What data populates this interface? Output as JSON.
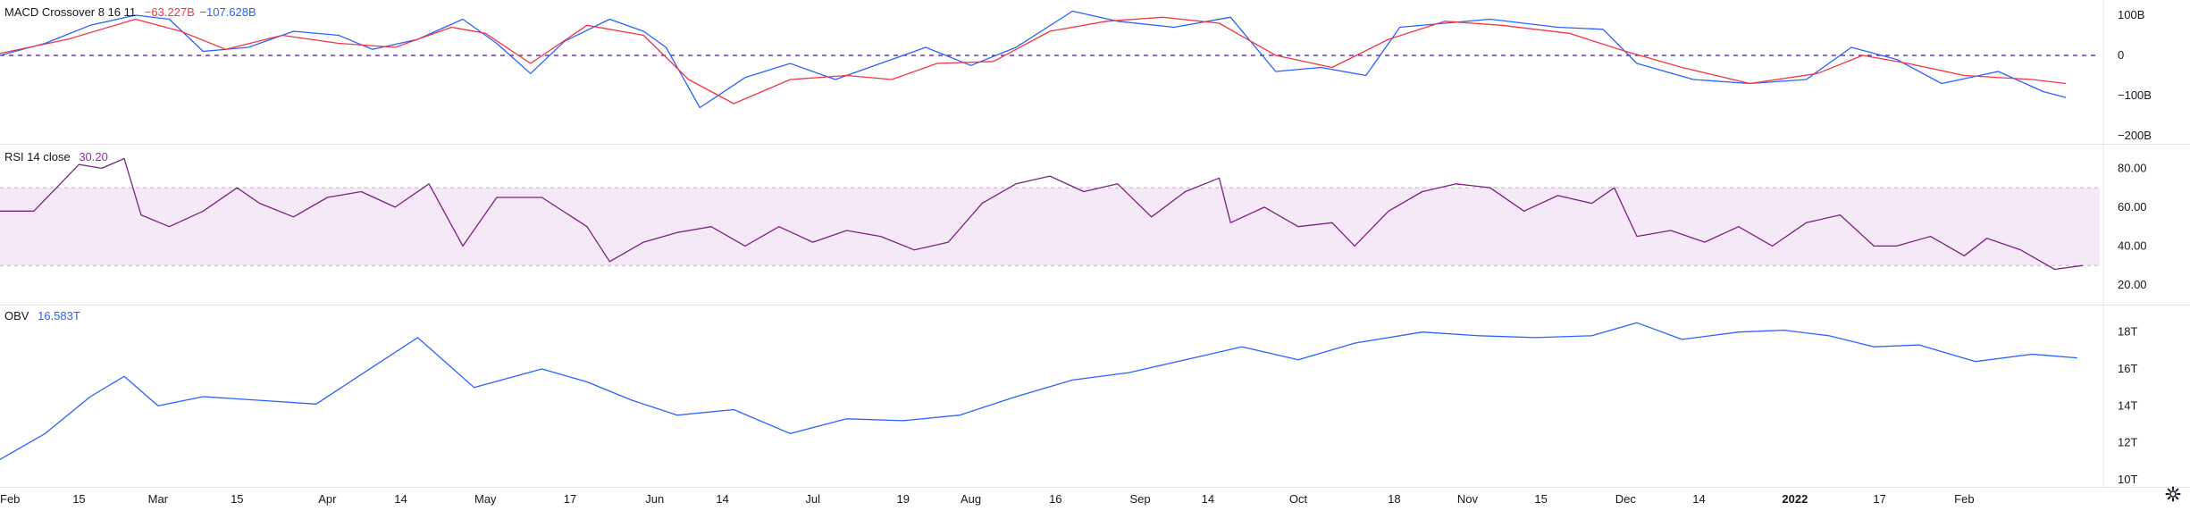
{
  "indicators": {
    "macd": {
      "title": "MACD Crossover 8 16 11",
      "signal_value": "−63.227B",
      "macd_value": "−107.628B",
      "signal_color": "#f23645",
      "macd_color": "#2962ff"
    },
    "rsi": {
      "title": "RSI 14 close",
      "value": "30.20",
      "color": "#7e1f86",
      "band_color": "#9c27b0"
    },
    "obv": {
      "title": "OBV",
      "value": "16.583T",
      "color": "#2962ff"
    }
  },
  "chart_data": [
    {
      "type": "line",
      "title": "MACD Crossover 8 16 11",
      "ylim": [
        -200,
        120
      ],
      "y_ticks": [
        "100B",
        "0",
        "−100B",
        "−200B"
      ],
      "y_tick_values": [
        100,
        0,
        -100,
        -200
      ],
      "zero_line": true,
      "x_range": [
        0,
        372
      ],
      "series": [
        {
          "color": "#2962ff",
          "points": [
            [
              0,
              0
            ],
            [
              8,
              30
            ],
            [
              16,
              75
            ],
            [
              24,
              100
            ],
            [
              30,
              90
            ],
            [
              36,
              10
            ],
            [
              44,
              20
            ],
            [
              52,
              60
            ],
            [
              60,
              50
            ],
            [
              66,
              15
            ],
            [
              74,
              40
            ],
            [
              82,
              90
            ],
            [
              88,
              30
            ],
            [
              94,
              -45
            ],
            [
              100,
              35
            ],
            [
              108,
              90
            ],
            [
              114,
              60
            ],
            [
              118,
              20
            ],
            [
              124,
              -130
            ],
            [
              132,
              -55
            ],
            [
              140,
              -20
            ],
            [
              148,
              -60
            ],
            [
              156,
              -20
            ],
            [
              164,
              20
            ],
            [
              172,
              -25
            ],
            [
              180,
              20
            ],
            [
              190,
              110
            ],
            [
              198,
              85
            ],
            [
              208,
              70
            ],
            [
              218,
              95
            ],
            [
              226,
              -40
            ],
            [
              234,
              -30
            ],
            [
              242,
              -50
            ],
            [
              248,
              70
            ],
            [
              256,
              80
            ],
            [
              264,
              90
            ],
            [
              276,
              70
            ],
            [
              284,
              65
            ],
            [
              290,
              -20
            ],
            [
              300,
              -60
            ],
            [
              310,
              -70
            ],
            [
              320,
              -60
            ],
            [
              328,
              20
            ],
            [
              336,
              -10
            ],
            [
              344,
              -70
            ],
            [
              354,
              -40
            ],
            [
              362,
              -90
            ],
            [
              366,
              -105
            ]
          ]
        },
        {
          "color": "#f23645",
          "points": [
            [
              0,
              5
            ],
            [
              12,
              40
            ],
            [
              24,
              90
            ],
            [
              32,
              60
            ],
            [
              40,
              15
            ],
            [
              50,
              50
            ],
            [
              60,
              30
            ],
            [
              70,
              20
            ],
            [
              80,
              70
            ],
            [
              86,
              55
            ],
            [
              94,
              -20
            ],
            [
              104,
              75
            ],
            [
              114,
              50
            ],
            [
              122,
              -60
            ],
            [
              130,
              -120
            ],
            [
              140,
              -60
            ],
            [
              150,
              -50
            ],
            [
              158,
              -60
            ],
            [
              166,
              -20
            ],
            [
              176,
              -15
            ],
            [
              186,
              60
            ],
            [
              196,
              85
            ],
            [
              206,
              95
            ],
            [
              216,
              80
            ],
            [
              226,
              0
            ],
            [
              236,
              -30
            ],
            [
              246,
              40
            ],
            [
              256,
              85
            ],
            [
              266,
              75
            ],
            [
              278,
              55
            ],
            [
              288,
              10
            ],
            [
              298,
              -30
            ],
            [
              310,
              -70
            ],
            [
              322,
              -45
            ],
            [
              330,
              0
            ],
            [
              338,
              -20
            ],
            [
              348,
              -50
            ],
            [
              360,
              -60
            ],
            [
              366,
              -70
            ]
          ]
        }
      ]
    },
    {
      "type": "line",
      "title": "RSI 14 close",
      "ylim": [
        14,
        88
      ],
      "y_ticks": [
        "80.00",
        "60.00",
        "40.00",
        "20.00"
      ],
      "y_tick_values": [
        80,
        60,
        40,
        20
      ],
      "band": [
        30,
        70
      ],
      "x_range": [
        0,
        372
      ],
      "series": [
        {
          "color": "#7e1f86",
          "points": [
            [
              0,
              58
            ],
            [
              6,
              58
            ],
            [
              10,
              70
            ],
            [
              14,
              82
            ],
            [
              18,
              80
            ],
            [
              22,
              85
            ],
            [
              25,
              56
            ],
            [
              30,
              50
            ],
            [
              36,
              58
            ],
            [
              42,
              70
            ],
            [
              46,
              62
            ],
            [
              52,
              55
            ],
            [
              58,
              65
            ],
            [
              64,
              68
            ],
            [
              70,
              60
            ],
            [
              76,
              72
            ],
            [
              82,
              40
            ],
            [
              88,
              65
            ],
            [
              96,
              65
            ],
            [
              104,
              50
            ],
            [
              108,
              32
            ],
            [
              114,
              42
            ],
            [
              120,
              47
            ],
            [
              126,
              50
            ],
            [
              132,
              40
            ],
            [
              138,
              50
            ],
            [
              144,
              42
            ],
            [
              150,
              48
            ],
            [
              156,
              45
            ],
            [
              162,
              38
            ],
            [
              168,
              42
            ],
            [
              174,
              62
            ],
            [
              180,
              72
            ],
            [
              186,
              76
            ],
            [
              192,
              68
            ],
            [
              198,
              72
            ],
            [
              204,
              55
            ],
            [
              210,
              68
            ],
            [
              216,
              75
            ],
            [
              218,
              52
            ],
            [
              224,
              60
            ],
            [
              230,
              50
            ],
            [
              236,
              52
            ],
            [
              240,
              40
            ],
            [
              246,
              58
            ],
            [
              252,
              68
            ],
            [
              258,
              72
            ],
            [
              264,
              70
            ],
            [
              270,
              58
            ],
            [
              276,
              66
            ],
            [
              282,
              62
            ],
            [
              286,
              70
            ],
            [
              290,
              45
            ],
            [
              296,
              48
            ],
            [
              302,
              42
            ],
            [
              308,
              50
            ],
            [
              314,
              40
            ],
            [
              320,
              52
            ],
            [
              326,
              56
            ],
            [
              332,
              40
            ],
            [
              336,
              40
            ],
            [
              342,
              45
            ],
            [
              348,
              35
            ],
            [
              352,
              44
            ],
            [
              358,
              38
            ],
            [
              364,
              28
            ],
            [
              369,
              30
            ]
          ]
        }
      ]
    },
    {
      "type": "line",
      "title": "OBV",
      "ylim": [
        10,
        19
      ],
      "y_ticks": [
        "18T",
        "16T",
        "14T",
        "12T",
        "10T"
      ],
      "y_tick_values": [
        18,
        16,
        14,
        12,
        10
      ],
      "x_range": [
        0,
        372
      ],
      "series": [
        {
          "color": "#2962ff",
          "points": [
            [
              0,
              11.1
            ],
            [
              8,
              12.5
            ],
            [
              16,
              14.5
            ],
            [
              22,
              15.6
            ],
            [
              28,
              14.0
            ],
            [
              36,
              14.5
            ],
            [
              46,
              14.3
            ],
            [
              56,
              14.1
            ],
            [
              64,
              15.7
            ],
            [
              74,
              17.7
            ],
            [
              84,
              15.0
            ],
            [
              96,
              16.0
            ],
            [
              104,
              15.3
            ],
            [
              112,
              14.3
            ],
            [
              120,
              13.5
            ],
            [
              130,
              13.8
            ],
            [
              140,
              12.5
            ],
            [
              150,
              13.3
            ],
            [
              160,
              13.2
            ],
            [
              170,
              13.5
            ],
            [
              180,
              14.5
            ],
            [
              190,
              15.4
            ],
            [
              200,
              15.8
            ],
            [
              210,
              16.5
            ],
            [
              220,
              17.2
            ],
            [
              230,
              16.5
            ],
            [
              240,
              17.4
            ],
            [
              252,
              18.0
            ],
            [
              262,
              17.8
            ],
            [
              272,
              17.7
            ],
            [
              282,
              17.8
            ],
            [
              290,
              18.5
            ],
            [
              298,
              17.6
            ],
            [
              308,
              18.0
            ],
            [
              316,
              18.1
            ],
            [
              324,
              17.8
            ],
            [
              332,
              17.2
            ],
            [
              340,
              17.3
            ],
            [
              350,
              16.4
            ],
            [
              360,
              16.8
            ],
            [
              368,
              16.6
            ]
          ]
        }
      ]
    }
  ],
  "x_axis": {
    "labels": [
      {
        "label": "Feb",
        "pos": 0
      },
      {
        "label": "15",
        "pos": 14
      },
      {
        "label": "Mar",
        "pos": 28
      },
      {
        "label": "15",
        "pos": 42
      },
      {
        "label": "Apr",
        "pos": 58
      },
      {
        "label": "14",
        "pos": 71
      },
      {
        "label": "May",
        "pos": 86
      },
      {
        "label": "17",
        "pos": 101
      },
      {
        "label": "Jun",
        "pos": 116
      },
      {
        "label": "14",
        "pos": 128
      },
      {
        "label": "Jul",
        "pos": 144
      },
      {
        "label": "19",
        "pos": 160
      },
      {
        "label": "Aug",
        "pos": 172
      },
      {
        "label": "16",
        "pos": 187
      },
      {
        "label": "Sep",
        "pos": 202
      },
      {
        "label": "14",
        "pos": 214
      },
      {
        "label": "Oct",
        "pos": 230
      },
      {
        "label": "18",
        "pos": 247
      },
      {
        "label": "Nov",
        "pos": 260
      },
      {
        "label": "15",
        "pos": 273
      },
      {
        "label": "Dec",
        "pos": 288
      },
      {
        "label": "14",
        "pos": 301
      },
      {
        "label": "2022",
        "pos": 318
      },
      {
        "label": "17",
        "pos": 333
      },
      {
        "label": "Feb",
        "pos": 348
      }
    ]
  },
  "settings_icon": "gear-icon"
}
